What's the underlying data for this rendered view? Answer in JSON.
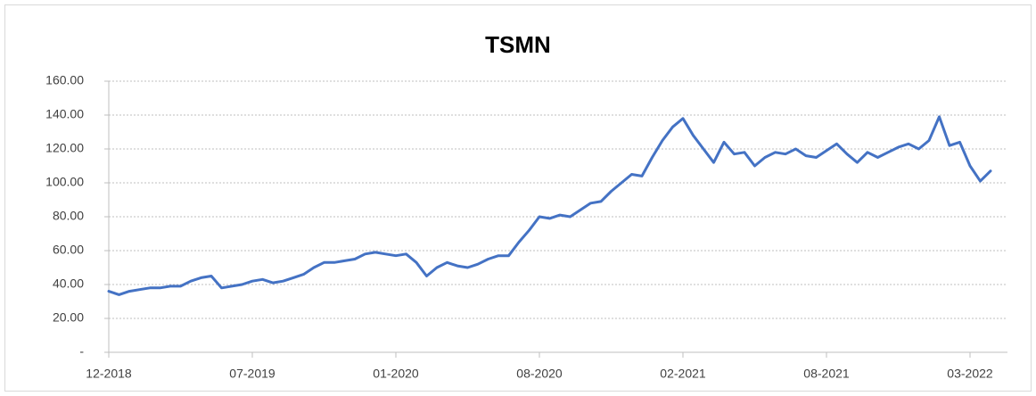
{
  "chart_data": {
    "type": "line",
    "title": "TSMN",
    "categories": [
      "12-2018",
      null,
      null,
      null,
      null,
      null,
      null,
      null,
      null,
      null,
      null,
      null,
      null,
      null,
      "07-2019",
      null,
      null,
      null,
      null,
      null,
      null,
      null,
      null,
      null,
      null,
      null,
      null,
      null,
      "01-2020",
      null,
      null,
      null,
      null,
      null,
      null,
      null,
      null,
      null,
      null,
      null,
      null,
      null,
      "08-2020",
      null,
      null,
      null,
      null,
      null,
      null,
      null,
      null,
      null,
      null,
      null,
      null,
      null,
      "02-2021",
      null,
      null,
      null,
      null,
      null,
      null,
      null,
      null,
      null,
      null,
      null,
      null,
      null,
      "08-2021",
      null,
      null,
      null,
      null,
      null,
      null,
      null,
      null,
      null,
      null,
      null,
      null,
      null,
      "03-2022",
      null,
      null
    ],
    "series": [
      {
        "name": "TSMN",
        "color": "#4472c4",
        "values": [
          36,
          34,
          36,
          37,
          38,
          38,
          39,
          39,
          42,
          44,
          45,
          38,
          39,
          40,
          42,
          43,
          41,
          42,
          44,
          46,
          50,
          53,
          53,
          54,
          55,
          58,
          59,
          58,
          57,
          58,
          53,
          45,
          50,
          53,
          51,
          50,
          52,
          55,
          57,
          57,
          65,
          72,
          80,
          79,
          81,
          80,
          84,
          88,
          89,
          95,
          100,
          105,
          104,
          115,
          125,
          133,
          138,
          128,
          120,
          112,
          124,
          117,
          118,
          110,
          115,
          118,
          117,
          120,
          116,
          115,
          119,
          123,
          117,
          112,
          118,
          115,
          118,
          121,
          123,
          120,
          125,
          139,
          122,
          124,
          110,
          101,
          107
        ]
      }
    ],
    "ylim": [
      0,
      160
    ],
    "yticks": [
      {
        "value": 0,
        "label": "-"
      },
      {
        "value": 20,
        "label": "20.00"
      },
      {
        "value": 40,
        "label": "40.00"
      },
      {
        "value": 60,
        "label": "60.00"
      },
      {
        "value": 80,
        "label": "80.00"
      },
      {
        "value": 100,
        "label": "100.00"
      },
      {
        "value": 120,
        "label": "120.00"
      },
      {
        "value": 140,
        "label": "140.00"
      },
      {
        "value": 160,
        "label": "160.00"
      }
    ],
    "grid": true
  }
}
